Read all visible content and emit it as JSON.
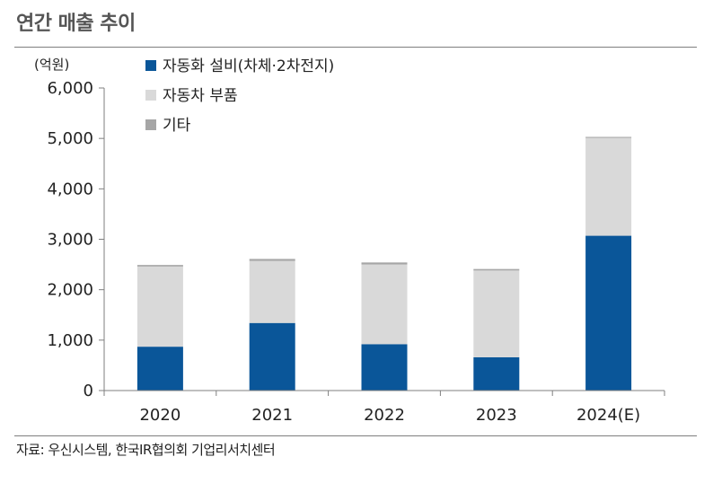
{
  "title": "연간 매출 추이",
  "source": "자료: 우신시스템, 한국IR협의회 기업리서치센터",
  "chart_data": {
    "type": "bar",
    "stacked": true,
    "unit_label": "(억원)",
    "categories": [
      "2020",
      "2021",
      "2022",
      "2023",
      "2024(E)"
    ],
    "series": [
      {
        "name": "자동화 설비(차체·2차전지)",
        "color": "#0a5699",
        "values": [
          870,
          1340,
          920,
          660,
          3070
        ]
      },
      {
        "name": "자동차 부품",
        "color": "#d9d9d9",
        "values": [
          1590,
          1230,
          1580,
          1720,
          1940
        ]
      },
      {
        "name": "기타",
        "color": "#a6a6a6",
        "values": [
          30,
          40,
          40,
          30,
          20
        ]
      }
    ],
    "ylim": [
      0,
      6000
    ],
    "yticks": [
      "0",
      "1,000",
      "2,000",
      "3,000",
      "4,000",
      "5,000",
      "6,000"
    ],
    "ytick_values": [
      0,
      1000,
      2000,
      3000,
      4000,
      5000,
      6000
    ],
    "legend_position": "top-left",
    "grid": false
  }
}
